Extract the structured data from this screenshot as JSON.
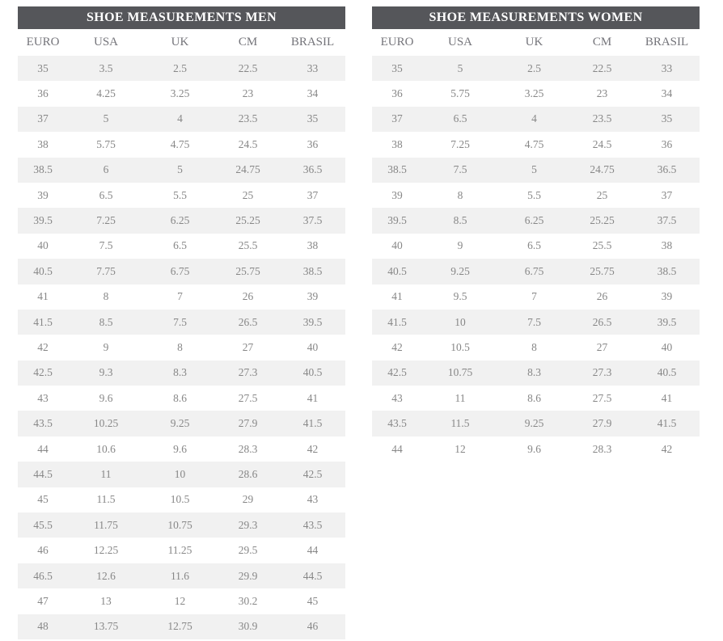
{
  "colors": {
    "header_bg": "#55565a",
    "header_text": "#ffffff",
    "stripe": "#f1f1f1",
    "row_bg": "#ffffff",
    "data_text": "#878787",
    "col_header_text": "#74747a",
    "page_bg": "#ffffff"
  },
  "tables": [
    {
      "title": "SHOE MEASUREMENTS MEN",
      "columns": [
        "EURO",
        "USA",
        "UK",
        "CM",
        "BRASIL"
      ],
      "rows": [
        [
          "35",
          "3.5",
          "2.5",
          "22.5",
          "33"
        ],
        [
          "36",
          "4.25",
          "3.25",
          "23",
          "34"
        ],
        [
          "37",
          "5",
          "4",
          "23.5",
          "35"
        ],
        [
          "38",
          "5.75",
          "4.75",
          "24.5",
          "36"
        ],
        [
          "38.5",
          "6",
          "5",
          "24.75",
          "36.5"
        ],
        [
          "39",
          "6.5",
          "5.5",
          "25",
          "37"
        ],
        [
          "39.5",
          "7.25",
          "6.25",
          "25.25",
          "37.5"
        ],
        [
          "40",
          "7.5",
          "6.5",
          "25.5",
          "38"
        ],
        [
          "40.5",
          "7.75",
          "6.75",
          "25.75",
          "38.5"
        ],
        [
          "41",
          "8",
          "7",
          "26",
          "39"
        ],
        [
          "41.5",
          "8.5",
          "7.5",
          "26.5",
          "39.5"
        ],
        [
          "42",
          "9",
          "8",
          "27",
          "40"
        ],
        [
          "42.5",
          "9.3",
          "8.3",
          "27.3",
          "40.5"
        ],
        [
          "43",
          "9.6",
          "8.6",
          "27.5",
          "41"
        ],
        [
          "43.5",
          "10.25",
          "9.25",
          "27.9",
          "41.5"
        ],
        [
          "44",
          "10.6",
          "9.6",
          "28.3",
          "42"
        ],
        [
          "44.5",
          "11",
          "10",
          "28.6",
          "42.5"
        ],
        [
          "45",
          "11.5",
          "10.5",
          "29",
          "43"
        ],
        [
          "45.5",
          "11.75",
          "10.75",
          "29.3",
          "43.5"
        ],
        [
          "46",
          "12.25",
          "11.25",
          "29.5",
          "44"
        ],
        [
          "46.5",
          "12.6",
          "11.6",
          "29.9",
          "44.5"
        ],
        [
          "47",
          "13",
          "12",
          "30.2",
          "45"
        ],
        [
          "48",
          "13.75",
          "12.75",
          "30.9",
          "46"
        ]
      ]
    },
    {
      "title": "SHOE MEASUREMENTS WOMEN",
      "columns": [
        "EURO",
        "USA",
        "UK",
        "CM",
        "BRASIL"
      ],
      "rows": [
        [
          "35",
          "5",
          "2.5",
          "22.5",
          "33"
        ],
        [
          "36",
          "5.75",
          "3.25",
          "23",
          "34"
        ],
        [
          "37",
          "6.5",
          "4",
          "23.5",
          "35"
        ],
        [
          "38",
          "7.25",
          "4.75",
          "24.5",
          "36"
        ],
        [
          "38.5",
          "7.5",
          "5",
          "24.75",
          "36.5"
        ],
        [
          "39",
          "8",
          "5.5",
          "25",
          "37"
        ],
        [
          "39.5",
          "8.5",
          "6.25",
          "25.25",
          "37.5"
        ],
        [
          "40",
          "9",
          "6.5",
          "25.5",
          "38"
        ],
        [
          "40.5",
          "9.25",
          "6.75",
          "25.75",
          "38.5"
        ],
        [
          "41",
          "9.5",
          "7",
          "26",
          "39"
        ],
        [
          "41.5",
          "10",
          "7.5",
          "26.5",
          "39.5"
        ],
        [
          "42",
          "10.5",
          "8",
          "27",
          "40"
        ],
        [
          "42.5",
          "10.75",
          "8.3",
          "27.3",
          "40.5"
        ],
        [
          "43",
          "11",
          "8.6",
          "27.5",
          "41"
        ],
        [
          "43.5",
          "11.5",
          "9.25",
          "27.9",
          "41.5"
        ],
        [
          "44",
          "12",
          "9.6",
          "28.3",
          "42"
        ]
      ]
    }
  ]
}
